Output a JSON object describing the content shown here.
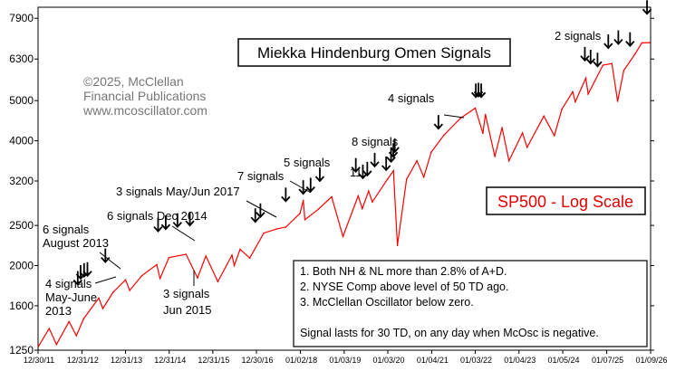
{
  "chart_data": {
    "type": "line",
    "title": "Miekka Hindenburg Omen Signals",
    "series_label": "SP500 - Log Scale",
    "copyright": [
      "©2025, McClellan",
      "Financial Publications",
      "www.mcoscillator.com"
    ],
    "y_scale": "log",
    "ylim": [
      1250,
      8400
    ],
    "y_ticks": [
      1250,
      1600,
      2000,
      2500,
      3200,
      4000,
      5000,
      6300,
      7900
    ],
    "x_ticks": [
      "12/30/11",
      "12/31/12",
      "12/31/13",
      "12/31/14",
      "12/31/15",
      "12/30/16",
      "01/02/18",
      "01/03/19",
      "01/03/20",
      "01/04/21",
      "01/03/22",
      "01/04/23",
      "01/05/24",
      "01/07/25",
      "01/09/26"
    ],
    "xlim": [
      "2011-12-30",
      "2026-01-09"
    ],
    "grid": true,
    "line_color": "#ff0000",
    "arrow_color": "#000000",
    "series": [
      {
        "name": "SP500",
        "x": [
          "2012-01-03",
          "2012-04-01",
          "2012-06-01",
          "2012-09-14",
          "2012-11-15",
          "2013-01-15",
          "2013-05-21",
          "2013-06-24",
          "2013-09-18",
          "2013-12-31",
          "2014-02-03",
          "2014-05-15",
          "2014-09-18",
          "2014-10-15",
          "2014-12-29",
          "2015-05-21",
          "2015-08-25",
          "2015-11-03",
          "2016-02-11",
          "2016-06-08",
          "2016-06-27",
          "2016-08-15",
          "2016-11-04",
          "2017-03-01",
          "2017-06-19",
          "2017-09-01",
          "2017-12-29",
          "2018-01-26",
          "2018-02-08",
          "2018-06-01",
          "2018-09-20",
          "2018-12-24",
          "2019-04-30",
          "2019-06-03",
          "2019-07-26",
          "2019-08-26",
          "2019-12-31",
          "2020-02-19",
          "2020-03-23",
          "2020-06-08",
          "2020-09-02",
          "2020-10-30",
          "2020-12-31",
          "2021-04-15",
          "2021-09-02",
          "2022-01-03",
          "2022-03-08",
          "2022-03-29",
          "2022-06-16",
          "2022-08-16",
          "2022-10-12",
          "2023-02-02",
          "2023-03-13",
          "2023-07-31",
          "2023-10-27",
          "2023-12-29",
          "2024-03-28",
          "2024-04-19",
          "2024-07-16",
          "2024-08-05",
          "2024-12-06",
          "2025-02-19",
          "2025-04-08",
          "2025-05-30",
          "2025-08-29",
          "2025-10-28",
          "2025-12-31"
        ],
        "values": [
          1277,
          1410,
          1290,
          1465,
          1355,
          1490,
          1670,
          1575,
          1725,
          1848,
          1742,
          1890,
          2011,
          1862,
          2090,
          2130,
          1868,
          2109,
          1829,
          2119,
          2000,
          2190,
          2085,
          2395,
          2453,
          2476,
          2673,
          2872,
          2581,
          2735,
          2930,
          2351,
          2945,
          2744,
          3025,
          2847,
          3230,
          3386,
          2237,
          3230,
          3580,
          3270,
          3756,
          4124,
          4536,
          4796,
          4170,
          4631,
          3667,
          4305,
          3577,
          4179,
          3855,
          4588,
          4117,
          4770,
          5254,
          4967,
          5667,
          5186,
          6090,
          6144,
          4982,
          5912,
          6460,
          6890,
          6900
        ]
      }
    ],
    "signal_arrows": [
      {
        "date": "2012-11-26",
        "value": 1800
      },
      {
        "date": "2012-12-20",
        "value": 1860
      },
      {
        "date": "2013-01-18",
        "value": 1880
      },
      {
        "date": "2013-02-15",
        "value": 1890
      },
      {
        "date": "2013-07-15",
        "value": 2040
      },
      {
        "date": "2014-09-29",
        "value": 2420
      },
      {
        "date": "2014-12-02",
        "value": 2450
      },
      {
        "date": "2015-03-10",
        "value": 2480
      },
      {
        "date": "2015-06-22",
        "value": 2500
      },
      {
        "date": "2016-12-20",
        "value": 2550
      },
      {
        "date": "2017-02-01",
        "value": 2620
      },
      {
        "date": "2017-09-01",
        "value": 2860
      },
      {
        "date": "2018-01-25",
        "value": 2980
      },
      {
        "date": "2018-03-28",
        "value": 3020
      },
      {
        "date": "2018-06-13",
        "value": 3200
      },
      {
        "date": "2019-04-10",
        "value": 3370
      },
      {
        "date": "2019-06-08",
        "value": 3250
      },
      {
        "date": "2019-07-15",
        "value": 3300
      },
      {
        "date": "2019-09-15",
        "value": 3470
      },
      {
        "date": "2019-12-20",
        "value": 3400
      },
      {
        "date": "2020-01-30",
        "value": 3560
      },
      {
        "date": "2020-02-18",
        "value": 3660
      },
      {
        "date": "2020-03-01",
        "value": 3760
      },
      {
        "date": "2021-03-01",
        "value": 4280
      },
      {
        "date": "2022-01-08",
        "value": 5100
      },
      {
        "date": "2022-01-30",
        "value": 5120
      },
      {
        "date": "2022-02-22",
        "value": 5100
      },
      {
        "date": "2024-07-08",
        "value": 6250
      },
      {
        "date": "2024-08-25",
        "value": 6150
      },
      {
        "date": "2024-10-22",
        "value": 6050
      },
      {
        "date": "2025-01-20",
        "value": 6700
      },
      {
        "date": "2025-04-14",
        "value": 6850
      },
      {
        "date": "2025-07-21",
        "value": 6780
      },
      {
        "date": "2025-12-10",
        "value": 8100
      }
    ],
    "annotations": [
      {
        "text": "4 signals",
        "lines": [
          "4 signals",
          "May-June",
          "2013"
        ]
      },
      {
        "text": "6 signals August 2013",
        "lines": [
          "6 signals",
          "August 2013"
        ]
      },
      {
        "text": "6 signals Dec 2014",
        "lines": [
          "6 signals Dec 2014"
        ]
      },
      {
        "text": "3 signals May/Jun 2017",
        "lines": [
          "3 signals May/Jun 2017"
        ]
      },
      {
        "text": "3 signals Jun 2015",
        "lines": [
          "3 signals",
          "Jun 2015"
        ]
      },
      {
        "text": "7 signals",
        "lines": [
          "7 signals"
        ]
      },
      {
        "text": "5 signals",
        "lines": [
          "5 signals"
        ]
      },
      {
        "text": "8 signals",
        "lines": [
          "8 signals"
        ]
      },
      {
        "text": "11",
        "lines": [
          "11"
        ]
      },
      {
        "text": "4 signals",
        "lines": [
          "4 signals"
        ]
      },
      {
        "text": "2 signals",
        "lines": [
          "2 signals"
        ]
      }
    ],
    "legend_notes": [
      "1. Both NH & NL more than 2.8% of A+D.",
      "2. NYSE Comp above level of 50 TD ago.",
      "3. McClellan Oscillator below zero.",
      "Signal lasts for 30 TD, on any day when McOsc is negative."
    ]
  }
}
